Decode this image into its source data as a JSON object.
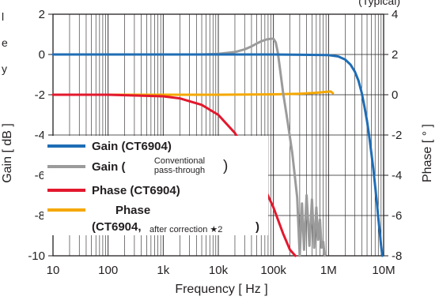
{
  "chart_data": {
    "type": "line",
    "xlabel": "Frequency [ Hz ]",
    "ylabel_left": "Gain [ dB ]",
    "ylabel_right": "Phase [ ° ]",
    "xscale": "log",
    "xlim": [
      10,
      10000000
    ],
    "ylim_left": [
      -10,
      2
    ],
    "ylim_right": [
      -8,
      4
    ],
    "grid": true,
    "legend_placement": "lower-left",
    "x_tick_labels": [
      "10",
      "100",
      "1k",
      "10k",
      "100k",
      "1M",
      "10M"
    ],
    "y_left_tick_labels": [
      "2",
      "0",
      "-2",
      "-4",
      "-6",
      "-8",
      "-10"
    ],
    "y_right_tick_labels": [
      "4",
      "2",
      "0",
      "-2",
      "-4",
      "-6",
      "-8"
    ],
    "corner_text_top_right": "(Typical)",
    "corner_text_top_left": [
      "l",
      "e",
      "y"
    ],
    "series": [
      {
        "name": "Gain (CT6904)",
        "legend_parts": [
          "Gain (CT6904)"
        ],
        "axis": "left",
        "color": "#1f6db5",
        "x": [
          10,
          100,
          1000,
          10000,
          100000,
          1000000,
          1500000,
          2000000,
          2500000,
          3000000,
          3500000,
          4000000,
          4500000,
          5000000,
          5500000,
          6000000,
          6500000,
          7000000,
          7500000,
          8000000,
          8500000,
          9000000,
          9500000
        ],
        "y": [
          0,
          0,
          0,
          0,
          0,
          -0.03,
          -0.1,
          -0.25,
          -0.5,
          -0.85,
          -1.3,
          -1.9,
          -2.6,
          -3.3,
          -4.1,
          -4.9,
          -5.7,
          -6.5,
          -7.3,
          -8.1,
          -8.8,
          -9.5,
          -10
        ]
      },
      {
        "name": "Gain (Conventional pass-through)",
        "legend_parts": [
          "Gain (",
          "Conventional",
          "pass-through",
          ")"
        ],
        "axis": "left",
        "color": "#9b9b9b",
        "x": [
          10,
          5000,
          10000,
          20000,
          30000,
          40000,
          50000,
          60000,
          70000,
          80000,
          90000,
          100000,
          110000,
          120000,
          130000,
          150000,
          180000,
          220000,
          270000,
          300000,
          330000,
          360000,
          400000,
          450000,
          500000,
          550000,
          600000,
          650000,
          700000,
          750000,
          800000,
          850000
        ],
        "y": [
          0,
          0,
          0.03,
          0.12,
          0.25,
          0.4,
          0.55,
          0.65,
          0.72,
          0.76,
          0.78,
          0.78,
          0.6,
          0.1,
          -0.6,
          -1.9,
          -3.3,
          -4.9,
          -7.1,
          -10,
          -7.4,
          -9.7,
          -7.0,
          -9.5,
          -7.2,
          -9.6,
          -7.6,
          -9.2,
          -8.2,
          -9.6,
          -9.3,
          -10
        ]
      },
      {
        "name": "Phase (CT6904)",
        "legend_parts": [
          "Phase (CT6904)"
        ],
        "axis": "right",
        "color": "#e3182d",
        "x": [
          10,
          100,
          1000,
          2000,
          5000,
          10000,
          20000,
          50000,
          100000,
          150000,
          200000,
          250000
        ],
        "y": [
          0,
          0,
          -0.08,
          -0.18,
          -0.5,
          -1.0,
          -1.9,
          -3.8,
          -5.6,
          -6.9,
          -7.7,
          -8.0
        ]
      },
      {
        "name": "Phase (CT6904, after correction ★2)",
        "legend_parts": [
          "Phase",
          "(CT6904,",
          "after correction ★2",
          ")"
        ],
        "axis": "right",
        "color": "#f5a800",
        "x": [
          10,
          100,
          1000,
          10000,
          100000,
          300000,
          600000,
          900000,
          1100000,
          1200000
        ],
        "y": [
          0,
          0,
          0,
          0,
          0.02,
          0.05,
          0.1,
          0.14,
          0.16,
          0.08
        ]
      }
    ]
  }
}
